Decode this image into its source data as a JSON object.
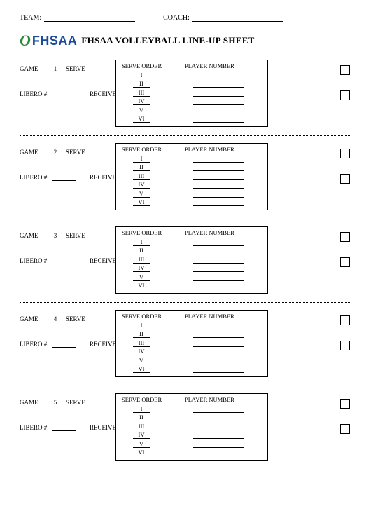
{
  "header": {
    "team_label": "TEAM:",
    "coach_label": "COACH:"
  },
  "logo": {
    "swoosh": "O",
    "text": "FHSAA"
  },
  "title": "FHSAA VOLLEYBALL LINE-UP SHEET",
  "labels": {
    "game": "GAME",
    "serve": "SERVE",
    "libero": "LIBERO #:",
    "receive": "RECEIVE",
    "serve_order": "SERVE ORDER",
    "player_number": "PLAYER NUMBER"
  },
  "romans": [
    "I",
    "II",
    "III",
    "IV",
    "V",
    "VI"
  ],
  "games": [
    {
      "num": "1"
    },
    {
      "num": "2"
    },
    {
      "num": "3"
    },
    {
      "num": "4"
    },
    {
      "num": "5"
    }
  ],
  "colors": {
    "logo_swoosh": "#2a8a3a",
    "logo_text": "#1a4a9c",
    "text": "#000000",
    "bg": "#ffffff"
  }
}
